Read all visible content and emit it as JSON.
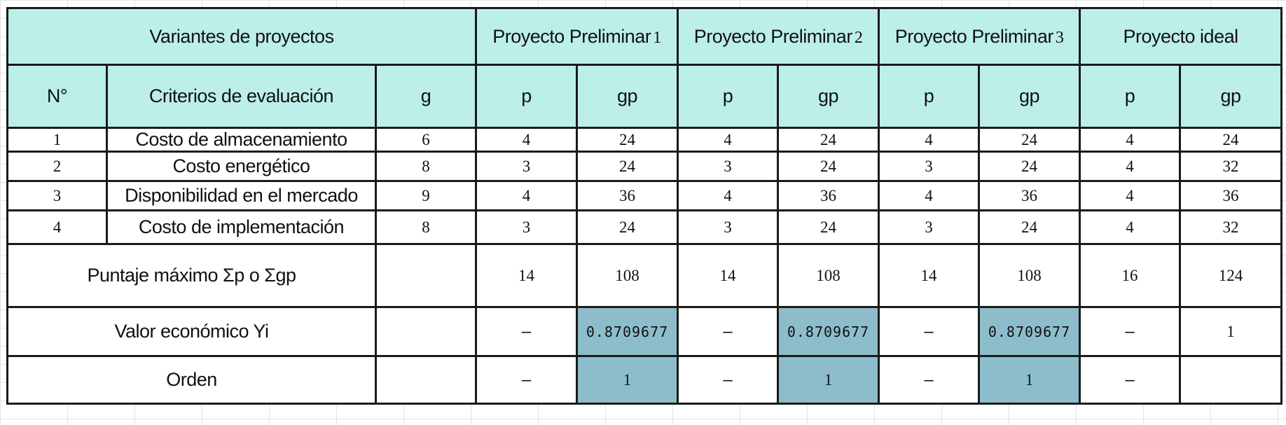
{
  "header": {
    "variants_label": "Variantes de proyectos",
    "projects": [
      {
        "name": "Proyecto Preliminar",
        "suffix": "1"
      },
      {
        "name": "Proyecto Preliminar",
        "suffix": "2"
      },
      {
        "name": "Proyecto Preliminar",
        "suffix": "3"
      },
      {
        "name": "Proyecto ideal",
        "suffix": ""
      }
    ]
  },
  "columns": {
    "n": "N°",
    "criteria": "Criterios de evaluación",
    "g": "g",
    "p": "p",
    "gp": "gp"
  },
  "rows": [
    {
      "n": "1",
      "criterion": "Costo de almacenamiento",
      "g": "6",
      "values": [
        "4",
        "24",
        "4",
        "24",
        "4",
        "24",
        "4",
        "24"
      ]
    },
    {
      "n": "2",
      "criterion": "Costo energético",
      "g": "8",
      "values": [
        "3",
        "24",
        "3",
        "24",
        "3",
        "24",
        "4",
        "32"
      ]
    },
    {
      "n": "3",
      "criterion": "Disponibilidad en el mercado",
      "g": "9",
      "values": [
        "4",
        "36",
        "4",
        "36",
        "4",
        "36",
        "4",
        "36"
      ]
    },
    {
      "n": "4",
      "criterion": "Costo de implementación",
      "g": "8",
      "values": [
        "3",
        "24",
        "3",
        "24",
        "3",
        "24",
        "4",
        "32"
      ]
    }
  ],
  "summary": {
    "max_label": "Puntaje máximo Σp o Σgp",
    "max_values": [
      "14",
      "108",
      "14",
      "108",
      "14",
      "108",
      "16",
      "124"
    ],
    "econ_label": "Valor económico Yi",
    "econ_values": [
      "–",
      "0.8709677",
      "–",
      "0.8709677",
      "–",
      "0.8709677",
      "–",
      "1"
    ],
    "order_label": "Orden",
    "order_values": [
      "–",
      "1",
      "–",
      "1",
      "–",
      "1",
      "–",
      ""
    ]
  },
  "colors": {
    "header_bg": "#bcefe9",
    "highlight_bg": "#8dbdca",
    "border": "#1a1a1a"
  }
}
